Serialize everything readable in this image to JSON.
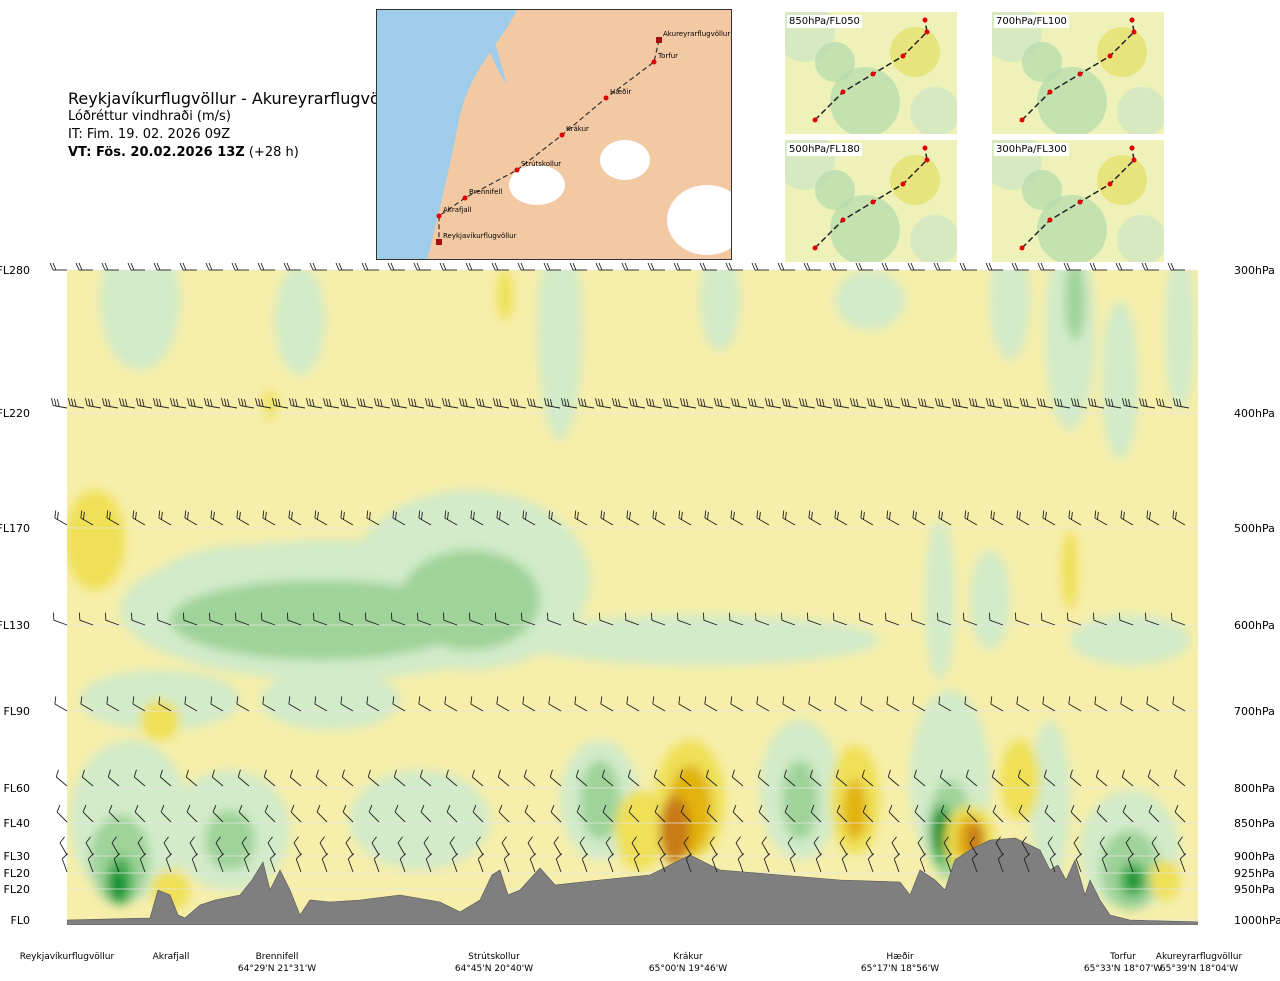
{
  "header": {
    "title": "Reykjavíkurflugvöllur - Akureyrarflugvöllur",
    "subtitle": "Lóðréttur vindhraði (m/s)",
    "init_time": "IT: Fim. 19. 02. 2026 09Z",
    "valid_time_bold": "VT: Fös. 20.02.2026 13Z",
    "valid_offset": "(+28 h)"
  },
  "route_map": {
    "waypoints": [
      "Akureyrarflugvöllur",
      "Torfur",
      "Hæðir",
      "Krákur",
      "Strútskollur",
      "Brennifell",
      "Akrafjall",
      "Reykjavíkurflugvöllur"
    ],
    "colors": {
      "land": "#f3c9a4",
      "sea": "#9fcde9",
      "ice": "#ffffff",
      "route": "#333333",
      "waypoint": "#e00000"
    }
  },
  "level_maps": [
    {
      "label": "850hPa/FL050"
    },
    {
      "label": "700hPa/FL100"
    },
    {
      "label": "500hPa/FL180"
    },
    {
      "label": "300hPa/FL300"
    }
  ],
  "chart_data": {
    "type": "heatmap",
    "title": "Lóðréttur vindhraði (m/s)",
    "y_left_ticks": [
      "FL280",
      "FL220",
      "FL170",
      "FL130",
      "FL90",
      "FL60",
      "FL40",
      "FL30",
      "FL20",
      "FL20",
      "FL0"
    ],
    "y_right_ticks": [
      "300hPa",
      "400hPa",
      "500hPa",
      "600hPa",
      "700hPa",
      "800hPa",
      "850hPa",
      "900hPa",
      "925hPa",
      "950hPa",
      "1000hPa"
    ],
    "pressure_levels_hpa": [
      300,
      400,
      500,
      600,
      700,
      800,
      850,
      900,
      925,
      950,
      1000
    ],
    "stations": [
      {
        "name": "Reykjavíkurflugvöllur",
        "coord": ""
      },
      {
        "name": "Akrafjall",
        "coord": ""
      },
      {
        "name": "Brennifell",
        "coord": "64°29'N 21°31'W"
      },
      {
        "name": "Strútskollur",
        "coord": "64°45'N 20°40'W"
      },
      {
        "name": "Krákur",
        "coord": "65°00'N 19°46'W"
      },
      {
        "name": "Hæðir",
        "coord": "65°17'N 18°56'W"
      },
      {
        "name": "Torfur",
        "coord": "65°33'N 18°07'W"
      },
      {
        "name": "Akureyrarflugvöllur",
        "coord": "65°39'N 18°04'W"
      }
    ],
    "colors": {
      "down_strong": "#0e8f2f",
      "down_mod": "#4fb35a",
      "down_weak": "#9fd39a",
      "down_light": "#d2ebc9",
      "neutral": "#fdfde6",
      "up_light": "#f6eeaa",
      "up_weak": "#efe056",
      "up_mod": "#e2b30c",
      "up_strong": "#c87a16",
      "terrain": "#7f7f7f",
      "grid": "#e6e6e6"
    },
    "grid": true,
    "wind_barbs": true
  }
}
